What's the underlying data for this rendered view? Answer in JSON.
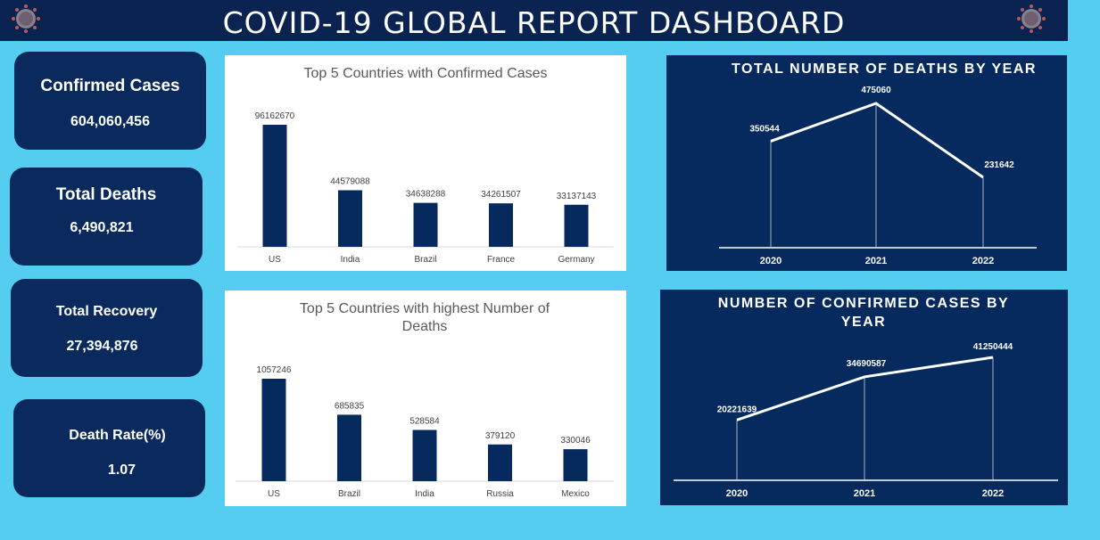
{
  "header": {
    "title": "COVID-19 GLOBAL REPORT DASHBOARD"
  },
  "icons": {
    "left": "coronavirus-icon",
    "right": "coronavirus-icon"
  },
  "colors": {
    "background": "#54cdf0",
    "panel": "#062a5e",
    "bar": "#062a5e",
    "header": "#0a2350"
  },
  "kpis": [
    {
      "label": "Confirmed Cases",
      "value": "604,060,456"
    },
    {
      "label": "Total Deaths",
      "value": "6,490,821"
    },
    {
      "label": "Total Recovery",
      "value": "27,394,876"
    },
    {
      "label": "Death Rate(%)",
      "value": "1.07"
    }
  ],
  "chart_data": [
    {
      "type": "bar",
      "title": "Top 5 Countries with Confirmed Cases",
      "categories": [
        "US",
        "India",
        "Brazil",
        "France",
        "Germany"
      ],
      "values": [
        96162670,
        44579088,
        34638288,
        34261507,
        33137143
      ],
      "ylim": [
        0,
        96162670
      ],
      "grid": false
    },
    {
      "type": "bar",
      "title": "Top 5 Countries with highest Number of Deaths",
      "categories": [
        "US",
        "Brazil",
        "India",
        "Russia",
        "Mexico"
      ],
      "values": [
        1057246,
        685835,
        528584,
        379120,
        330046
      ],
      "ylim": [
        0,
        1057246
      ],
      "grid": false
    },
    {
      "type": "line",
      "title": "TOTAL NUMBER OF DEATHS BY YEAR",
      "x": [
        "2020",
        "2021",
        "2022"
      ],
      "values": [
        350544,
        475060,
        231642
      ],
      "ylim": [
        0,
        475060
      ],
      "grid": false
    },
    {
      "type": "line",
      "title": "NUMBER OF CONFIRMED CASES BY YEAR",
      "x": [
        "2020",
        "2021",
        "2022"
      ],
      "values": [
        20221639,
        34690587,
        41250444
      ],
      "ylim": [
        0,
        41250444
      ],
      "grid": false
    }
  ]
}
